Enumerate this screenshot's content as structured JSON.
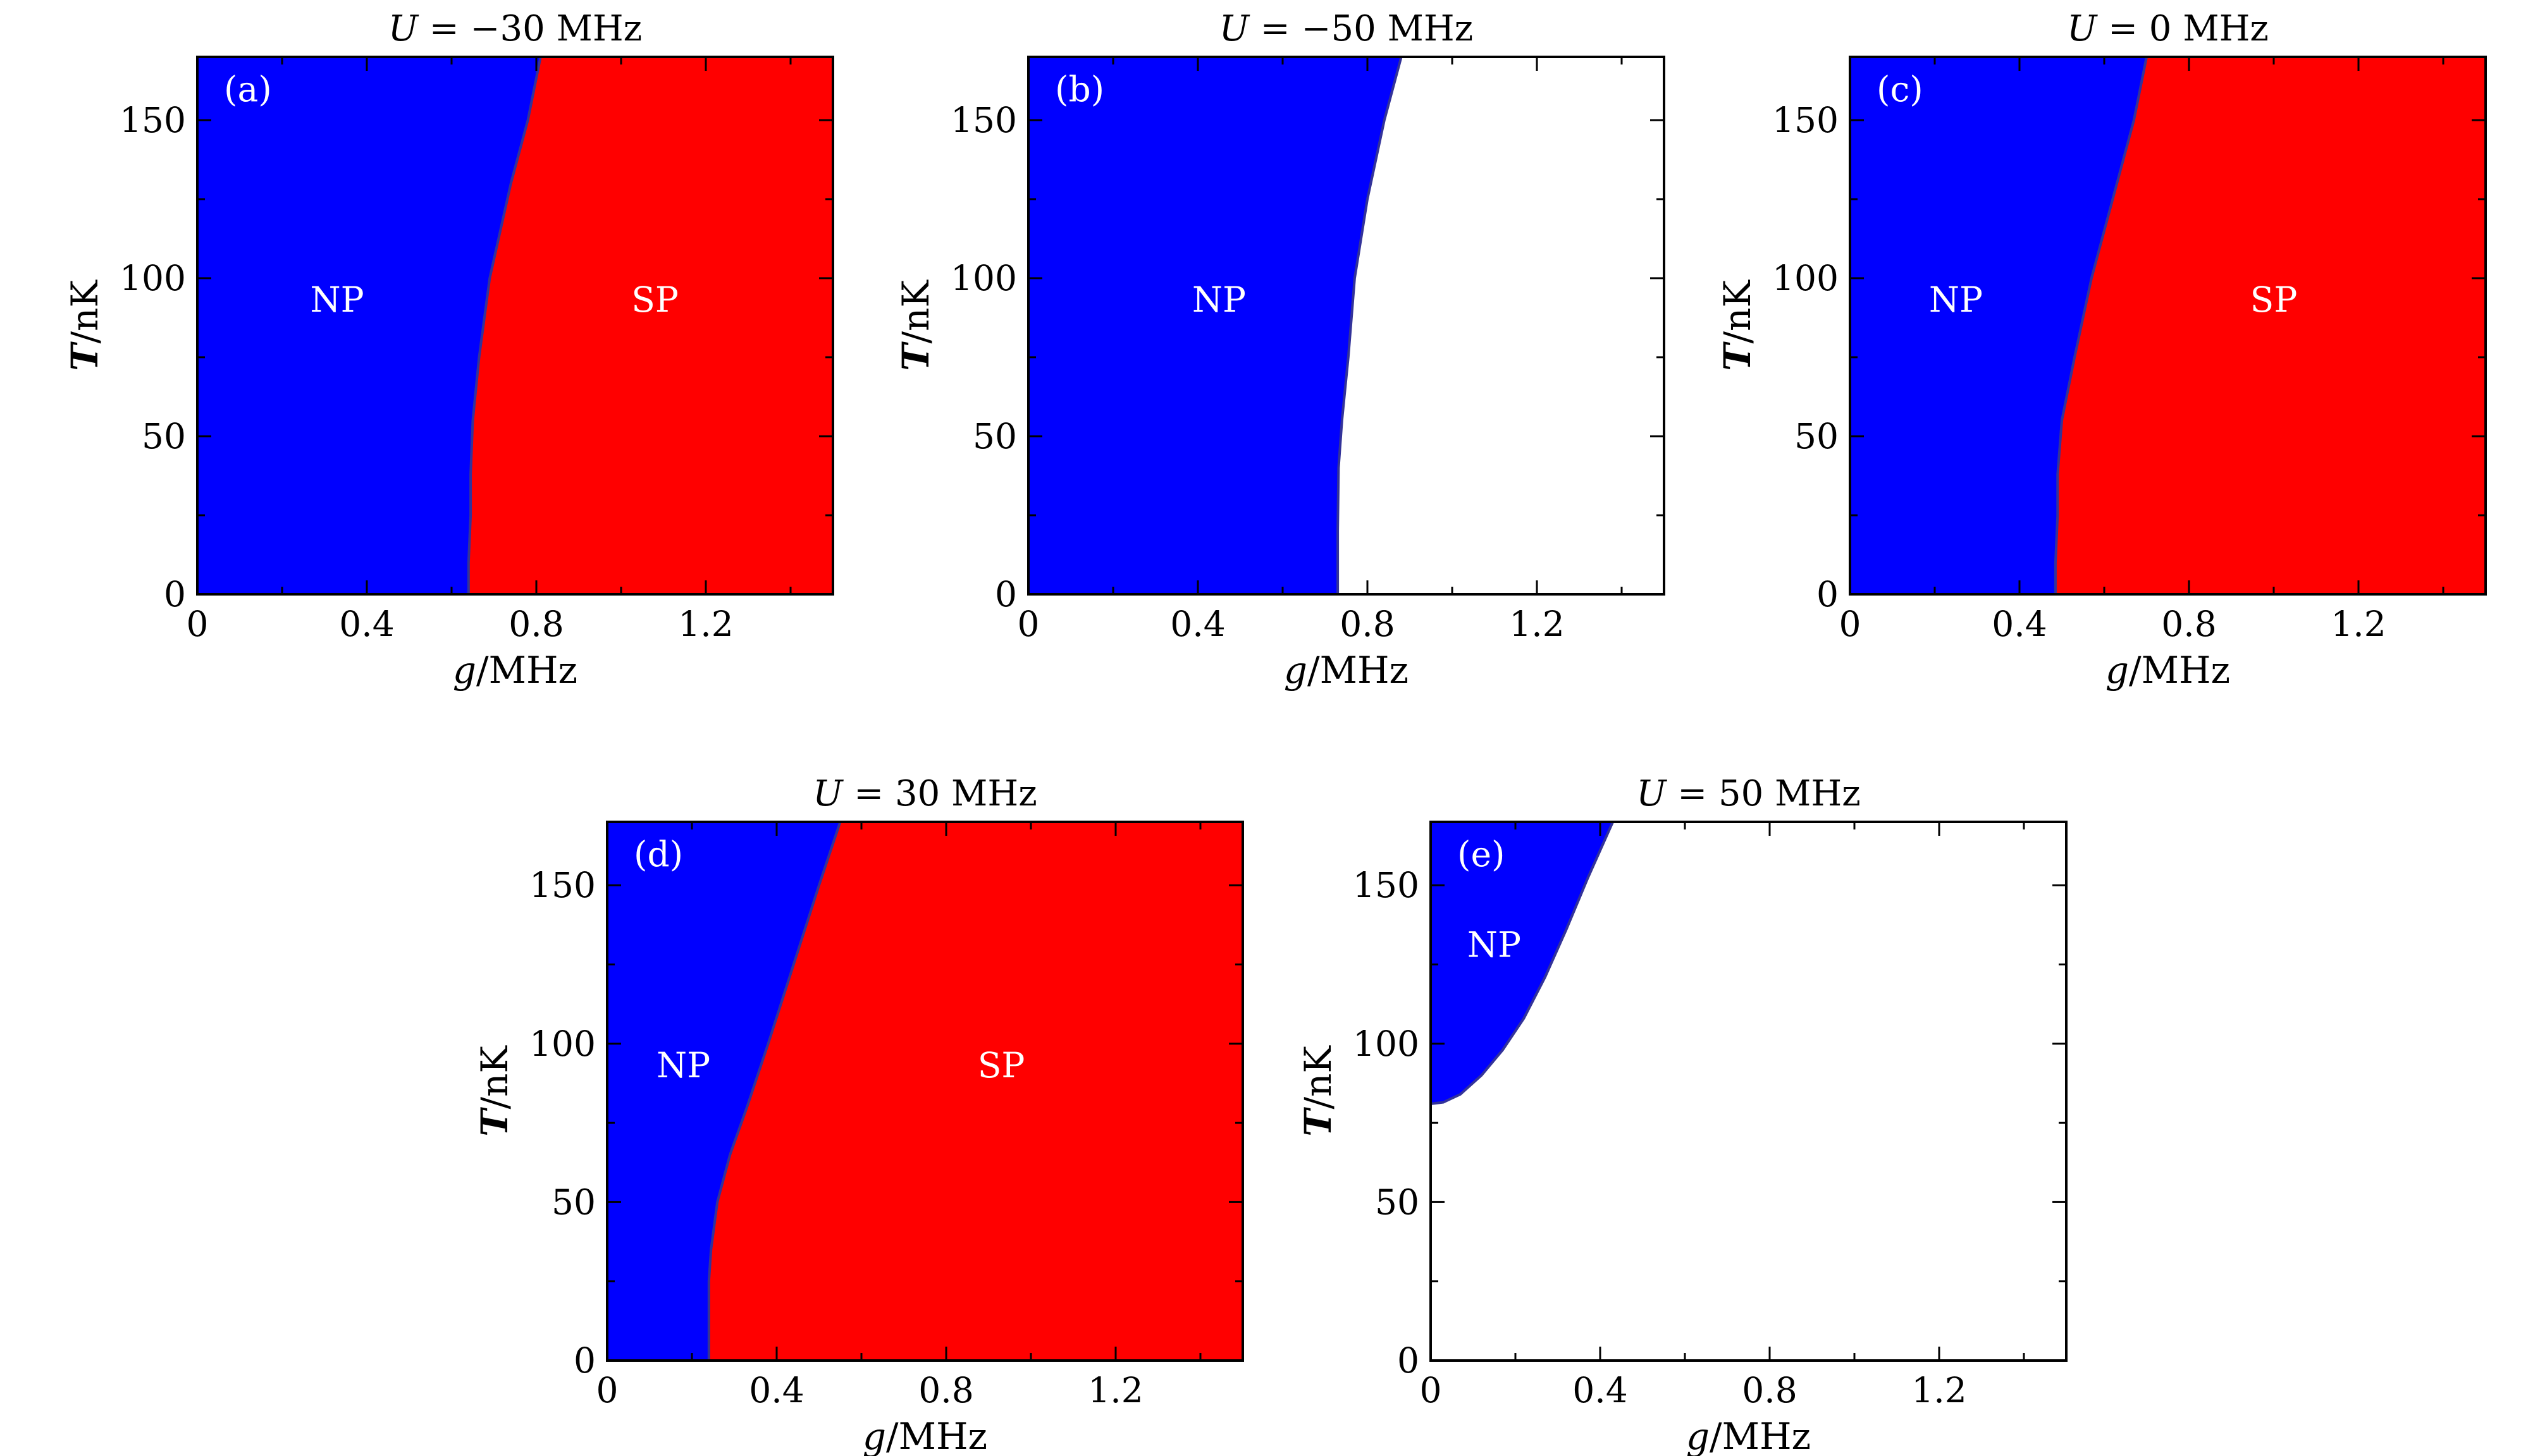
{
  "colors": {
    "np": "#0000ff",
    "sp": "#ff0000",
    "boundary": "#333399",
    "frame": "#000000"
  },
  "chart_data": [
    {
      "type": "phase-diagram",
      "panel": "(a)",
      "title_var": "U",
      "title_value": "= −30 MHz",
      "xlabel_var": "g",
      "xlabel_unit": "/MHz",
      "ylabel_var": "T",
      "ylabel_unit": "/nK",
      "xlim": [
        0,
        1.5
      ],
      "ylim": [
        0,
        170
      ],
      "xticks": [
        {
          "v": 0,
          "label": "0"
        },
        {
          "v": 0.4,
          "label": "0.4"
        },
        {
          "v": 0.8,
          "label": "0.8"
        },
        {
          "v": 1.2,
          "label": "1.2"
        }
      ],
      "yticks": [
        {
          "v": 0,
          "label": "0"
        },
        {
          "v": 50,
          "label": "50"
        },
        {
          "v": 100,
          "label": "100"
        },
        {
          "v": 150,
          "label": "150"
        }
      ],
      "boundary_type": "vertical",
      "boundary": [
        [
          0.64,
          0
        ],
        [
          0.64,
          10
        ],
        [
          0.645,
          25
        ],
        [
          0.645,
          38
        ],
        [
          0.65,
          55
        ],
        [
          0.665,
          75
        ],
        [
          0.69,
          100
        ],
        [
          0.74,
          130
        ],
        [
          0.78,
          150
        ],
        [
          0.81,
          170
        ]
      ],
      "left_phase": "NP",
      "right_phase": "SP",
      "regions": [
        {
          "label": "NP",
          "x": 0.33,
          "y": 93
        },
        {
          "label": "SP",
          "x": 1.08,
          "y": 93
        }
      ]
    },
    {
      "type": "phase-diagram",
      "panel": "(b)",
      "title_var": "U",
      "title_value": "= −50 MHz",
      "xlabel_var": "g",
      "xlabel_unit": "/MHz",
      "ylabel_var": "T",
      "ylabel_unit": "/nK",
      "xlim": [
        0,
        1.5
      ],
      "ylim": [
        0,
        170
      ],
      "xticks": [
        {
          "v": 0,
          "label": "0"
        },
        {
          "v": 0.4,
          "label": "0.4"
        },
        {
          "v": 0.8,
          "label": "0.8"
        },
        {
          "v": 1.2,
          "label": "1.2"
        }
      ],
      "yticks": [
        {
          "v": 0,
          "label": "0"
        },
        {
          "v": 50,
          "label": "50"
        },
        {
          "v": 100,
          "label": "100"
        },
        {
          "v": 150,
          "label": "150"
        }
      ],
      "boundary_type": "vertical",
      "boundary": [
        [
          0.73,
          0
        ],
        [
          0.73,
          20
        ],
        [
          0.732,
          40
        ],
        [
          0.74,
          55
        ],
        [
          0.755,
          75
        ],
        [
          0.77,
          100
        ],
        [
          0.8,
          125
        ],
        [
          0.84,
          150
        ],
        [
          0.88,
          170
        ]
      ],
      "left_phase": "NP",
      "right_phase": "",
      "regions": [
        {
          "label": "NP",
          "x": 0.45,
          "y": 93
        }
      ]
    },
    {
      "type": "phase-diagram",
      "panel": "(c)",
      "title_var": "U",
      "title_value": "= 0 MHz",
      "xlabel_var": "g",
      "xlabel_unit": "/MHz",
      "ylabel_var": "T",
      "ylabel_unit": "/nK",
      "xlim": [
        0,
        1.5
      ],
      "ylim": [
        0,
        170
      ],
      "xticks": [
        {
          "v": 0,
          "label": "0"
        },
        {
          "v": 0.4,
          "label": "0.4"
        },
        {
          "v": 0.8,
          "label": "0.8"
        },
        {
          "v": 1.2,
          "label": "1.2"
        }
      ],
      "yticks": [
        {
          "v": 0,
          "label": "0"
        },
        {
          "v": 50,
          "label": "50"
        },
        {
          "v": 100,
          "label": "100"
        },
        {
          "v": 150,
          "label": "150"
        }
      ],
      "boundary_type": "vertical",
      "boundary": [
        [
          0.485,
          0
        ],
        [
          0.485,
          10
        ],
        [
          0.49,
          25
        ],
        [
          0.49,
          38
        ],
        [
          0.5,
          55
        ],
        [
          0.53,
          75
        ],
        [
          0.57,
          100
        ],
        [
          0.63,
          130
        ],
        [
          0.67,
          150
        ],
        [
          0.7,
          170
        ]
      ],
      "left_phase": "NP",
      "right_phase": "SP",
      "regions": [
        {
          "label": "NP",
          "x": 0.25,
          "y": 93
        },
        {
          "label": "SP",
          "x": 1.0,
          "y": 93
        }
      ]
    },
    {
      "type": "phase-diagram",
      "panel": "(d)",
      "title_var": "U",
      "title_value": "= 30 MHz",
      "xlabel_var": "g",
      "xlabel_unit": "/MHz",
      "ylabel_var": "T",
      "ylabel_unit": "/nK",
      "xlim": [
        0,
        1.5
      ],
      "ylim": [
        0,
        170
      ],
      "xticks": [
        {
          "v": 0,
          "label": "0"
        },
        {
          "v": 0.4,
          "label": "0.4"
        },
        {
          "v": 0.8,
          "label": "0.8"
        },
        {
          "v": 1.2,
          "label": "1.2"
        }
      ],
      "yticks": [
        {
          "v": 0,
          "label": "0"
        },
        {
          "v": 50,
          "label": "50"
        },
        {
          "v": 100,
          "label": "100"
        },
        {
          "v": 150,
          "label": "150"
        }
      ],
      "boundary_type": "vertical",
      "boundary": [
        [
          0.24,
          0
        ],
        [
          0.24,
          10
        ],
        [
          0.24,
          25
        ],
        [
          0.245,
          35
        ],
        [
          0.26,
          50
        ],
        [
          0.29,
          65
        ],
        [
          0.33,
          80
        ],
        [
          0.38,
          100
        ],
        [
          0.44,
          125
        ],
        [
          0.5,
          150
        ],
        [
          0.55,
          170
        ]
      ],
      "left_phase": "NP",
      "right_phase": "SP",
      "regions": [
        {
          "label": "NP",
          "x": 0.18,
          "y": 93
        },
        {
          "label": "SP",
          "x": 0.93,
          "y": 93
        }
      ]
    },
    {
      "type": "phase-diagram",
      "panel": "(e)",
      "title_var": "U",
      "title_value": "= 50 MHz",
      "xlabel_var": "g",
      "xlabel_unit": "/MHz",
      "ylabel_var": "T",
      "ylabel_unit": "/nK",
      "xlim": [
        0,
        1.5
      ],
      "ylim": [
        0,
        170
      ],
      "xticks": [
        {
          "v": 0,
          "label": "0"
        },
        {
          "v": 0.4,
          "label": "0.4"
        },
        {
          "v": 0.8,
          "label": "0.8"
        },
        {
          "v": 1.2,
          "label": "1.2"
        }
      ],
      "yticks": [
        {
          "v": 0,
          "label": "0"
        },
        {
          "v": 50,
          "label": "50"
        },
        {
          "v": 100,
          "label": "100"
        },
        {
          "v": 150,
          "label": "150"
        }
      ],
      "boundary_type": "upper-left",
      "boundary": [
        [
          0,
          81
        ],
        [
          0.03,
          81.5
        ],
        [
          0.07,
          84
        ],
        [
          0.12,
          90
        ],
        [
          0.17,
          98
        ],
        [
          0.22,
          108
        ],
        [
          0.27,
          121
        ],
        [
          0.32,
          136
        ],
        [
          0.37,
          152
        ],
        [
          0.43,
          170
        ]
      ],
      "left_phase": "NP",
      "right_phase": "",
      "regions": [
        {
          "label": "NP",
          "x": 0.15,
          "y": 131
        }
      ]
    }
  ]
}
